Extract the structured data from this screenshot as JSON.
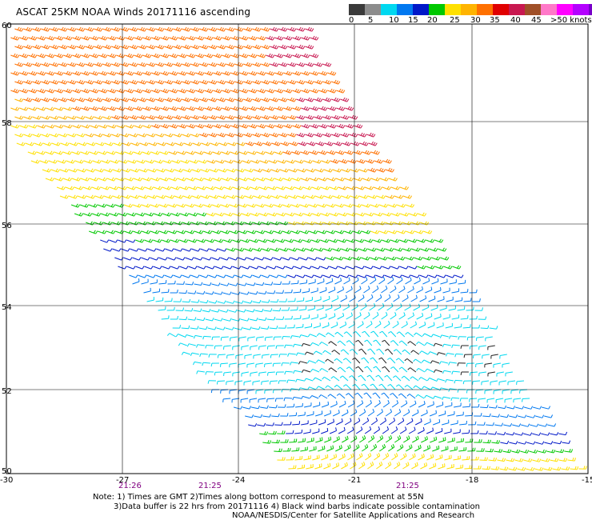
{
  "title": "ASCAT 25KM NOAA Winds 20171116 ascending",
  "legend": {
    "labels": [
      "0",
      "5",
      "10",
      "15",
      "20",
      "25",
      "30",
      "35",
      "40",
      "45",
      ">50 knots"
    ],
    "colors": [
      "#3a3a3a",
      "#8c8c8c",
      "#00d8f0",
      "#0078f0",
      "#0018c8",
      "#00c800",
      "#ffe000",
      "#ffb400",
      "#ff7000",
      "#e00000",
      "#c81850",
      "#a05028",
      "#ff78c8",
      "#ff00ff",
      "#b400ff",
      "#7800c8"
    ]
  },
  "map": {
    "lon_labels": [
      "-30",
      "-27",
      "-24",
      "-21",
      "-18",
      "-15"
    ],
    "lat_labels": [
      "60",
      "58",
      "56",
      "54",
      "52",
      "50"
    ],
    "time_labels": [
      "21:26",
      "21:25",
      "21:25"
    ]
  },
  "notes": {
    "line1": "Note: 1) Times are GMT 2)Times along bottom correspond to measurement at 55N",
    "line2": "3)Data buffer is 22 hrs from 20171116 4) Black wind barbs indicate possible contamination",
    "line3": "NOAA/NESDIS/Center for Satellite Applications and Research"
  }
}
